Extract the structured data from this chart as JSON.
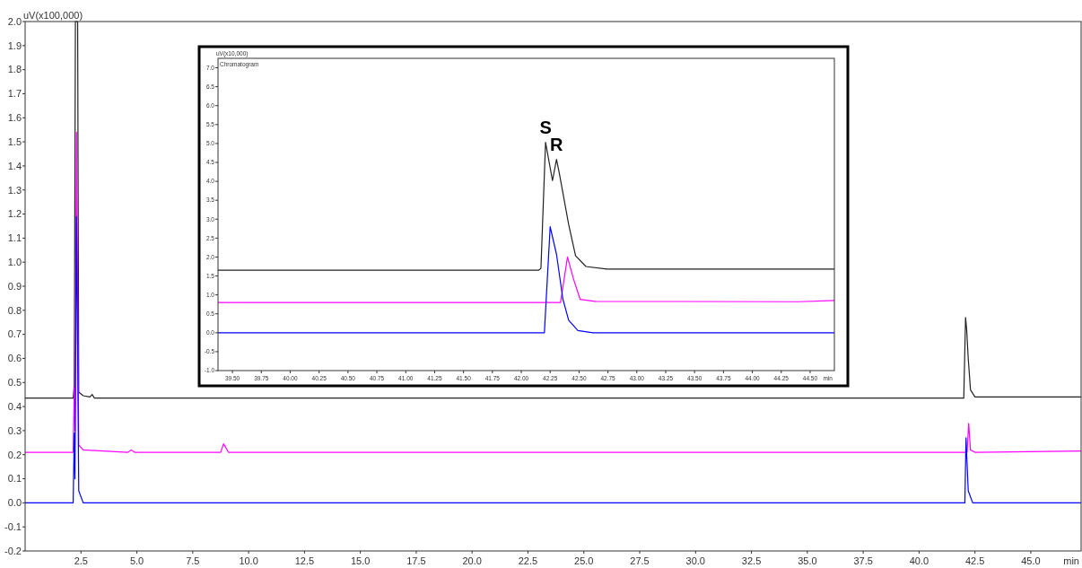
{
  "chart_data": [
    {
      "type": "line",
      "xlabel": "min",
      "ylabel": "uV(x100,000)",
      "xlim": [
        0,
        47.25
      ],
      "ylim": [
        -0.2,
        2.0
      ],
      "xticks": [
        {
          "value": 2.5,
          "label": "2.5"
        },
        {
          "value": 5,
          "label": "5.0"
        },
        {
          "value": 7.5,
          "label": "7.5"
        },
        {
          "value": 10,
          "label": "10.0"
        },
        {
          "value": 12.5,
          "label": "12.5"
        },
        {
          "value": 15,
          "label": "15.0"
        },
        {
          "value": 17.5,
          "label": "17.5"
        },
        {
          "value": 20,
          "label": "20.0"
        },
        {
          "value": 22.5,
          "label": "22.5"
        },
        {
          "value": 25,
          "label": "25.0"
        },
        {
          "value": 27.5,
          "label": "27.5"
        },
        {
          "value": 30,
          "label": "30.0"
        },
        {
          "value": 32.5,
          "label": "32.5"
        },
        {
          "value": 35,
          "label": "35.0"
        },
        {
          "value": 37.5,
          "label": "37.5"
        },
        {
          "value": 40,
          "label": "40.0"
        },
        {
          "value": 42.5,
          "label": "42.5"
        },
        {
          "value": 45,
          "label": "45.0"
        }
      ],
      "yticks": [
        {
          "value": -0.2,
          "label": "-0.2"
        },
        {
          "value": -0.1,
          "label": "-0.1"
        },
        {
          "value": 0,
          "label": "0.0"
        },
        {
          "value": 0.1,
          "label": "0.1"
        },
        {
          "value": 0.2,
          "label": "0.2"
        },
        {
          "value": 0.3,
          "label": "0.3"
        },
        {
          "value": 0.4,
          "label": "0.4"
        },
        {
          "value": 0.5,
          "label": "0.5"
        },
        {
          "value": 0.6,
          "label": "0.6"
        },
        {
          "value": 0.7,
          "label": "0.7"
        },
        {
          "value": 0.8,
          "label": "0.8"
        },
        {
          "value": 0.9,
          "label": "0.9"
        },
        {
          "value": 1,
          "label": "1.0"
        },
        {
          "value": 1.1,
          "label": "1.1"
        },
        {
          "value": 1.2,
          "label": "1.2"
        },
        {
          "value": 1.3,
          "label": "1.3"
        },
        {
          "value": 1.4,
          "label": "1.4"
        },
        {
          "value": 1.5,
          "label": "1.5"
        },
        {
          "value": 1.6,
          "label": "1.6"
        },
        {
          "value": 1.7,
          "label": "1.7"
        },
        {
          "value": 1.8,
          "label": "1.8"
        },
        {
          "value": 1.9,
          "label": "1.9"
        },
        {
          "value": 2,
          "label": "2.0"
        }
      ],
      "series": [
        {
          "color": "#222222",
          "x": [
            0,
            2.15,
            2.2,
            2.25,
            2.35,
            2.4,
            2.6,
            2.9,
            3.0,
            3.1,
            42.0,
            42.08,
            42.13,
            42.2,
            42.3,
            42.5,
            47.25
          ],
          "values": [
            0.435,
            0.435,
            0.49,
            2.0,
            2.0,
            0.46,
            0.445,
            0.44,
            0.45,
            0.435,
            0.435,
            0.77,
            0.72,
            0.6,
            0.47,
            0.44,
            0.44
          ]
        },
        {
          "color": "#ff00ff",
          "x": [
            0,
            2.15,
            2.2,
            2.23,
            2.3,
            2.4,
            2.6,
            4.6,
            4.75,
            4.9,
            8.75,
            8.88,
            9.1,
            42.15,
            42.22,
            42.3,
            42.5,
            47.25
          ],
          "values": [
            0.21,
            0.21,
            0.48,
            0.3,
            1.54,
            0.24,
            0.22,
            0.21,
            0.22,
            0.21,
            0.21,
            0.245,
            0.21,
            0.21,
            0.33,
            0.22,
            0.21,
            0.215
          ]
        },
        {
          "color": "#0000ff",
          "x": [
            0,
            2.15,
            2.2,
            2.23,
            2.3,
            2.4,
            2.6,
            42.05,
            42.1,
            42.2,
            42.4,
            47.25
          ],
          "values": [
            0,
            0,
            0.29,
            0.1,
            1.19,
            0.05,
            0,
            0,
            0.27,
            0.05,
            0,
            0
          ]
        }
      ]
    },
    {
      "type": "line",
      "xlabel": "min",
      "ylabel": "uV(x10,000)",
      "xlim": [
        39.375,
        44.71
      ],
      "ylim": [
        -1.0,
        7.25
      ],
      "xticks": [
        {
          "value": 39.5,
          "label": "39.50"
        },
        {
          "value": 39.75,
          "label": "39.75"
        },
        {
          "value": 40,
          "label": "40.00"
        },
        {
          "value": 40.25,
          "label": "40.25"
        },
        {
          "value": 40.5,
          "label": "40.50"
        },
        {
          "value": 40.75,
          "label": "40.75"
        },
        {
          "value": 41,
          "label": "41.00"
        },
        {
          "value": 41.25,
          "label": "41.25"
        },
        {
          "value": 41.5,
          "label": "41.50"
        },
        {
          "value": 41.75,
          "label": "41.75"
        },
        {
          "value": 42,
          "label": "42.00"
        },
        {
          "value": 42.25,
          "label": "42.25"
        },
        {
          "value": 42.5,
          "label": "42.50"
        },
        {
          "value": 42.75,
          "label": "42.75"
        },
        {
          "value": 43,
          "label": "43.00"
        },
        {
          "value": 43.25,
          "label": "43.25"
        },
        {
          "value": 43.5,
          "label": "43.50"
        },
        {
          "value": 43.75,
          "label": "43.75"
        },
        {
          "value": 44,
          "label": "44.00"
        },
        {
          "value": 44.25,
          "label": "44.25"
        },
        {
          "value": 44.5,
          "label": "44.50"
        }
      ],
      "yticks": [
        {
          "value": -1,
          "label": "-1.0"
        },
        {
          "value": -0.5,
          "label": "-0.5"
        },
        {
          "value": 0,
          "label": "0.0"
        },
        {
          "value": 0.5,
          "label": "0.5"
        },
        {
          "value": 1,
          "label": "1.0"
        },
        {
          "value": 1.5,
          "label": "1.5"
        },
        {
          "value": 2,
          "label": "2.0"
        },
        {
          "value": 2.5,
          "label": "2.5"
        },
        {
          "value": 3,
          "label": "3.0"
        },
        {
          "value": 3.5,
          "label": "3.5"
        },
        {
          "value": 4,
          "label": "4.0"
        },
        {
          "value": 4.5,
          "label": "4.5"
        },
        {
          "value": 5,
          "label": "5.0"
        },
        {
          "value": 5.5,
          "label": "5.5"
        },
        {
          "value": 6,
          "label": "6.0"
        },
        {
          "value": 6.5,
          "label": "6.5"
        },
        {
          "value": 7,
          "label": "7.0"
        }
      ],
      "annotations": [
        "Chromatogram",
        {
          "text": "S",
          "x": 42.21,
          "y": 5.03
        },
        {
          "text": "R",
          "x": 42.305,
          "y": 4.58
        }
      ],
      "series": [
        {
          "color": "#222222",
          "x": [
            39.375,
            42.15,
            42.17,
            42.21,
            42.27,
            42.305,
            42.33,
            42.41,
            42.47,
            42.56,
            42.74,
            44.71
          ],
          "values": [
            1.65,
            1.65,
            1.7,
            5.03,
            4.02,
            4.58,
            4.2,
            2.86,
            2.03,
            1.75,
            1.68,
            1.68
          ]
        },
        {
          "color": "#ff00ff",
          "x": [
            39.375,
            42.34,
            42.4,
            42.45,
            42.51,
            42.64,
            44.4,
            44.71
          ],
          "values": [
            0.8,
            0.8,
            2.0,
            1.44,
            0.88,
            0.83,
            0.82,
            0.85
          ]
        },
        {
          "color": "#0000ff",
          "x": [
            39.375,
            42.2,
            42.25,
            42.305,
            42.36,
            42.41,
            42.49,
            42.62,
            44.71
          ],
          "values": [
            0,
            0,
            2.8,
            2.07,
            0.89,
            0.33,
            0.06,
            0,
            0
          ]
        }
      ]
    }
  ]
}
